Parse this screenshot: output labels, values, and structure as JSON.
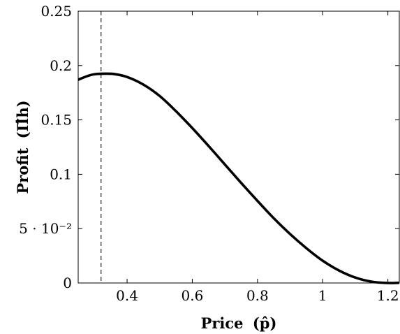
{
  "chart_data": {
    "type": "line",
    "xlabel": "Price",
    "xlabel_symbol": "(p̂)",
    "ylabel": "Profit",
    "ylabel_symbol": "(Π̂h)",
    "xlim": [
      0.25,
      1.235
    ],
    "ylim": [
      0,
      0.25
    ],
    "x_ticks": [
      {
        "value": 0.4,
        "label": "0.4"
      },
      {
        "value": 0.6,
        "label": "0.6"
      },
      {
        "value": 0.8,
        "label": "0.8"
      },
      {
        "value": 1.0,
        "label": "1"
      },
      {
        "value": 1.2,
        "label": "1.2"
      }
    ],
    "y_ticks": [
      {
        "value": 0,
        "label": "0"
      },
      {
        "value": 0.05,
        "label": "5 · 10⁻²"
      },
      {
        "value": 0.1,
        "label": "0.1"
      },
      {
        "value": 0.15,
        "label": "0.15"
      },
      {
        "value": 0.2,
        "label": "0.2"
      },
      {
        "value": 0.25,
        "label": "0.25"
      }
    ],
    "grid": false,
    "legend": "none",
    "series": [
      {
        "color": "#000000",
        "x": [
          0.25,
          0.28,
          0.3,
          0.33,
          0.36,
          0.4,
          0.45,
          0.5,
          0.55,
          0.6,
          0.65,
          0.7,
          0.75,
          0.8,
          0.85,
          0.9,
          0.95,
          1.0,
          1.05,
          1.1,
          1.15,
          1.2,
          1.235
        ],
        "y": [
          0.187,
          0.1905,
          0.192,
          0.1925,
          0.1922,
          0.1895,
          0.1825,
          0.172,
          0.158,
          0.1425,
          0.126,
          0.109,
          0.092,
          0.0755,
          0.0595,
          0.045,
          0.032,
          0.0205,
          0.0115,
          0.005,
          0.0012,
          0.0,
          0.0002
        ]
      }
    ],
    "reference_lines": [
      {
        "orientation": "vertical",
        "x": 0.32,
        "style": "dashed",
        "color": "#444444"
      }
    ]
  }
}
